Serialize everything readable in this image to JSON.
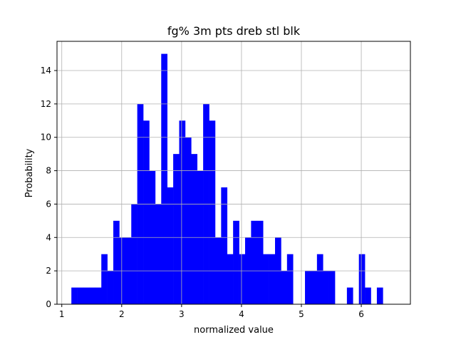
{
  "chart_data": {
    "type": "bar",
    "title": "fg% 3m pts dreb stl blk",
    "xlabel": "normalized value",
    "ylabel": "Probability",
    "xlim": [
      0.92,
      6.82
    ],
    "ylim": [
      0,
      15.75
    ],
    "xticks": [
      1,
      2,
      3,
      4,
      5,
      6
    ],
    "yticks": [
      0,
      2,
      4,
      6,
      8,
      10,
      12,
      14
    ],
    "grid": true,
    "bar_color": "#0000ff",
    "bin_start": 1.16,
    "bin_width": 0.1,
    "counts": [
      1,
      1,
      1,
      1,
      1,
      3,
      2,
      5,
      4,
      4,
      6,
      12,
      11,
      8,
      6,
      15,
      7,
      9,
      11,
      10,
      9,
      8,
      12,
      11,
      4,
      7,
      3,
      5,
      3,
      4,
      5,
      5,
      3,
      3,
      4,
      2,
      3,
      0,
      0,
      2,
      2,
      3,
      2,
      2,
      0,
      0,
      1,
      0,
      3,
      1,
      0,
      1
    ]
  }
}
